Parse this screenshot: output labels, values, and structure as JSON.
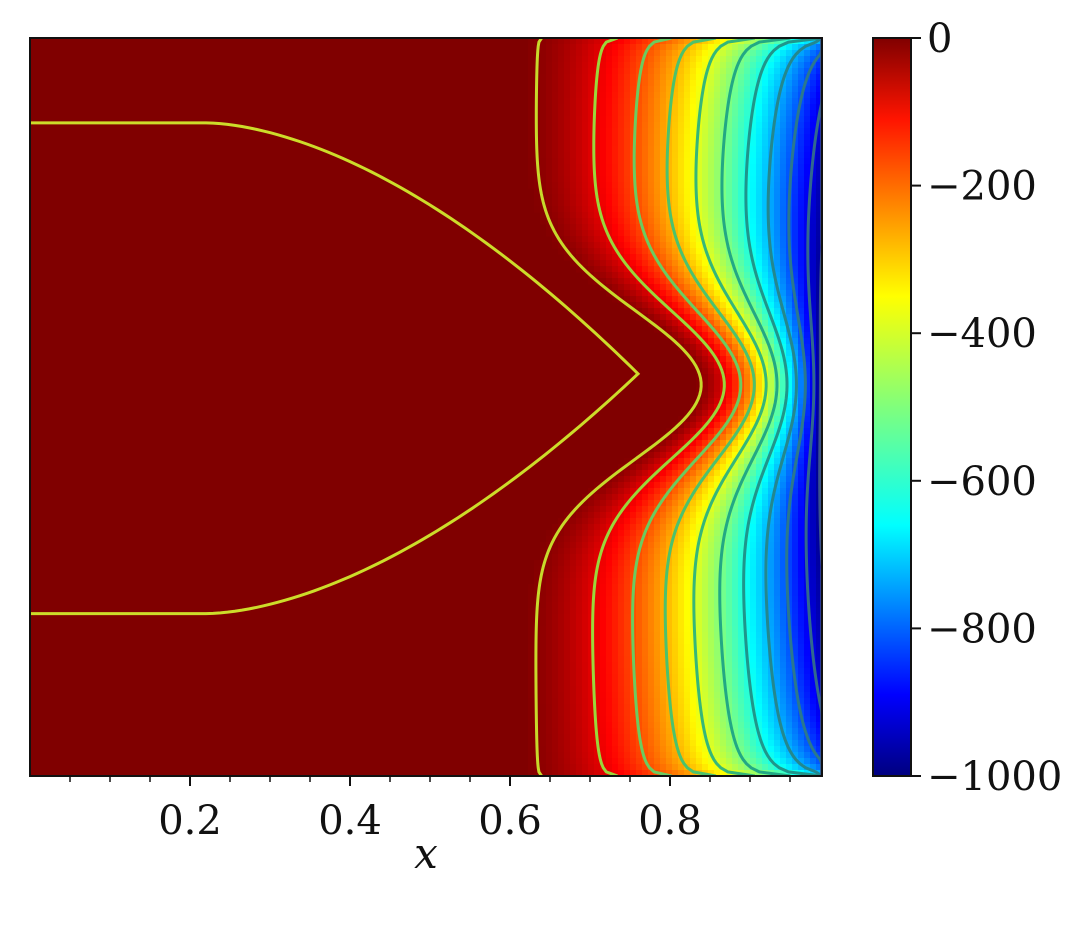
{
  "chart_data": {
    "type": "heatmap",
    "title": "",
    "xlabel": "x",
    "ylabel": "",
    "xlim": [
      0.0,
      0.99
    ],
    "x_ticks": [
      "0.2",
      "0.4",
      "0.6",
      "0.8"
    ],
    "x_tick_values": [
      0.2,
      0.4,
      0.6,
      0.8
    ],
    "x_minor_tick_values": [
      0.05,
      0.1,
      0.15,
      0.25,
      0.3,
      0.35,
      0.45,
      0.5,
      0.55,
      0.65,
      0.7,
      0.75,
      0.85,
      0.9,
      0.95
    ],
    "colormap": "jet",
    "colorbar": {
      "range": [
        -1000,
        0
      ],
      "ticks": [
        "0",
        "−200",
        "−400",
        "−600",
        "−800",
        "−1000"
      ],
      "tick_values": [
        0,
        -200,
        -400,
        -600,
        -800,
        -1000
      ]
    },
    "field_description_values": {
      "plateau_value": 0,
      "min_value": -1000
    },
    "contour_levels": [
      -10,
      -100,
      -200,
      -300,
      -400,
      -500,
      -600,
      -700,
      -800,
      -900,
      -980
    ],
    "contour_colors": [
      "#c8d92b",
      "#9bd63a",
      "#6ccb5f",
      "#4cc26c",
      "#35b779",
      "#22a884",
      "#1f968b",
      "#23888e",
      "#2a788e",
      "#31688e",
      "#3b528b"
    ]
  }
}
